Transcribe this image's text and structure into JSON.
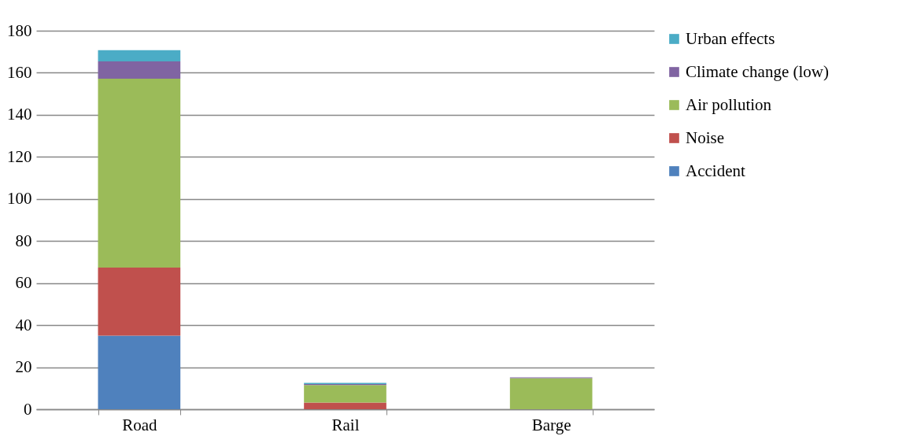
{
  "chart_data": {
    "type": "bar",
    "stacked": true,
    "categories": [
      "Road",
      "Rail",
      "Barge"
    ],
    "series": [
      {
        "name": "Accident",
        "color": "#4f81bd",
        "values": [
          35,
          null,
          null
        ]
      },
      {
        "name": "Noise",
        "color": "#c0504d",
        "values": [
          32.4,
          3.2,
          null
        ]
      },
      {
        "name": "Air pollution",
        "color": "#9bbb59",
        "values": [
          89.8,
          8.3,
          14.8
        ]
      },
      {
        "name": "Climate change (low)",
        "color": "#8064a2",
        "values": [
          8.2,
          0.5,
          0.4
        ]
      },
      {
        "name": "Urban effects",
        "color": "#4bacc6",
        "values": [
          5.3,
          0.5,
          null
        ]
      }
    ],
    "ylim": [
      0,
      180
    ],
    "yticks": [
      0,
      20,
      40,
      60,
      80,
      100,
      120,
      140,
      160,
      180
    ],
    "grid": "y",
    "legend": "right"
  }
}
